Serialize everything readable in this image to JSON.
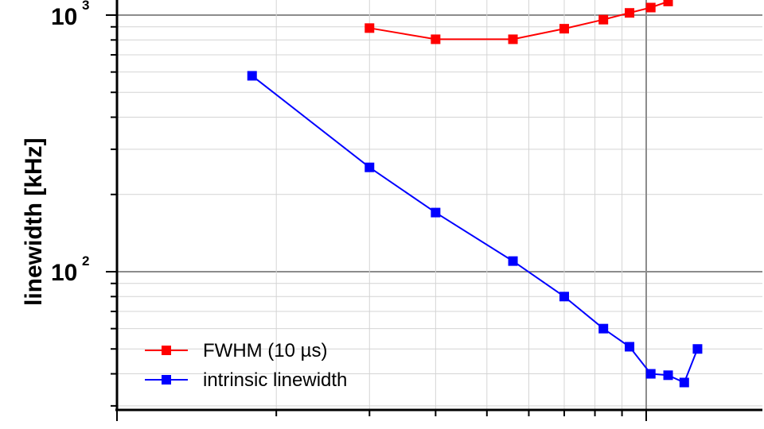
{
  "chart_data": {
    "type": "line",
    "ylabel": "linewidth [kHz]",
    "yscale": "log",
    "ylim": [
      32,
      1100
    ],
    "xlim": [
      1.0,
      11.5
    ],
    "xscale": "log",
    "grid": true,
    "legend_placement": "bottom-left",
    "yticks": [
      {
        "base": "10",
        "exp": "3",
        "value": 1000
      },
      {
        "base": "10",
        "exp": "2",
        "value": 100
      }
    ],
    "series": [
      {
        "name": "FWHM (10 µs)",
        "color": "#ff0000",
        "points": [
          {
            "x": 3.0,
            "y": 890
          },
          {
            "x": 4.0,
            "y": 805
          },
          {
            "x": 5.6,
            "y": 805
          },
          {
            "x": 7.0,
            "y": 885
          },
          {
            "x": 8.3,
            "y": 960
          },
          {
            "x": 9.3,
            "y": 1020
          },
          {
            "x": 10.2,
            "y": 1070
          },
          {
            "x": 11.0,
            "y": 1130
          }
        ]
      },
      {
        "name": "intrinsic linewidth",
        "color": "#0000ff",
        "points": [
          {
            "x": 1.8,
            "y": 580
          },
          {
            "x": 3.0,
            "y": 255
          },
          {
            "x": 4.0,
            "y": 170
          },
          {
            "x": 5.6,
            "y": 110
          },
          {
            "x": 7.0,
            "y": 80
          },
          {
            "x": 8.3,
            "y": 60
          },
          {
            "x": 9.3,
            "y": 51
          },
          {
            "x": 10.2,
            "y": 40
          },
          {
            "x": 11.0,
            "y": 39.5
          },
          {
            "x": 11.8,
            "y": 37
          },
          {
            "x": 12.5,
            "y": 50
          }
        ]
      }
    ]
  }
}
